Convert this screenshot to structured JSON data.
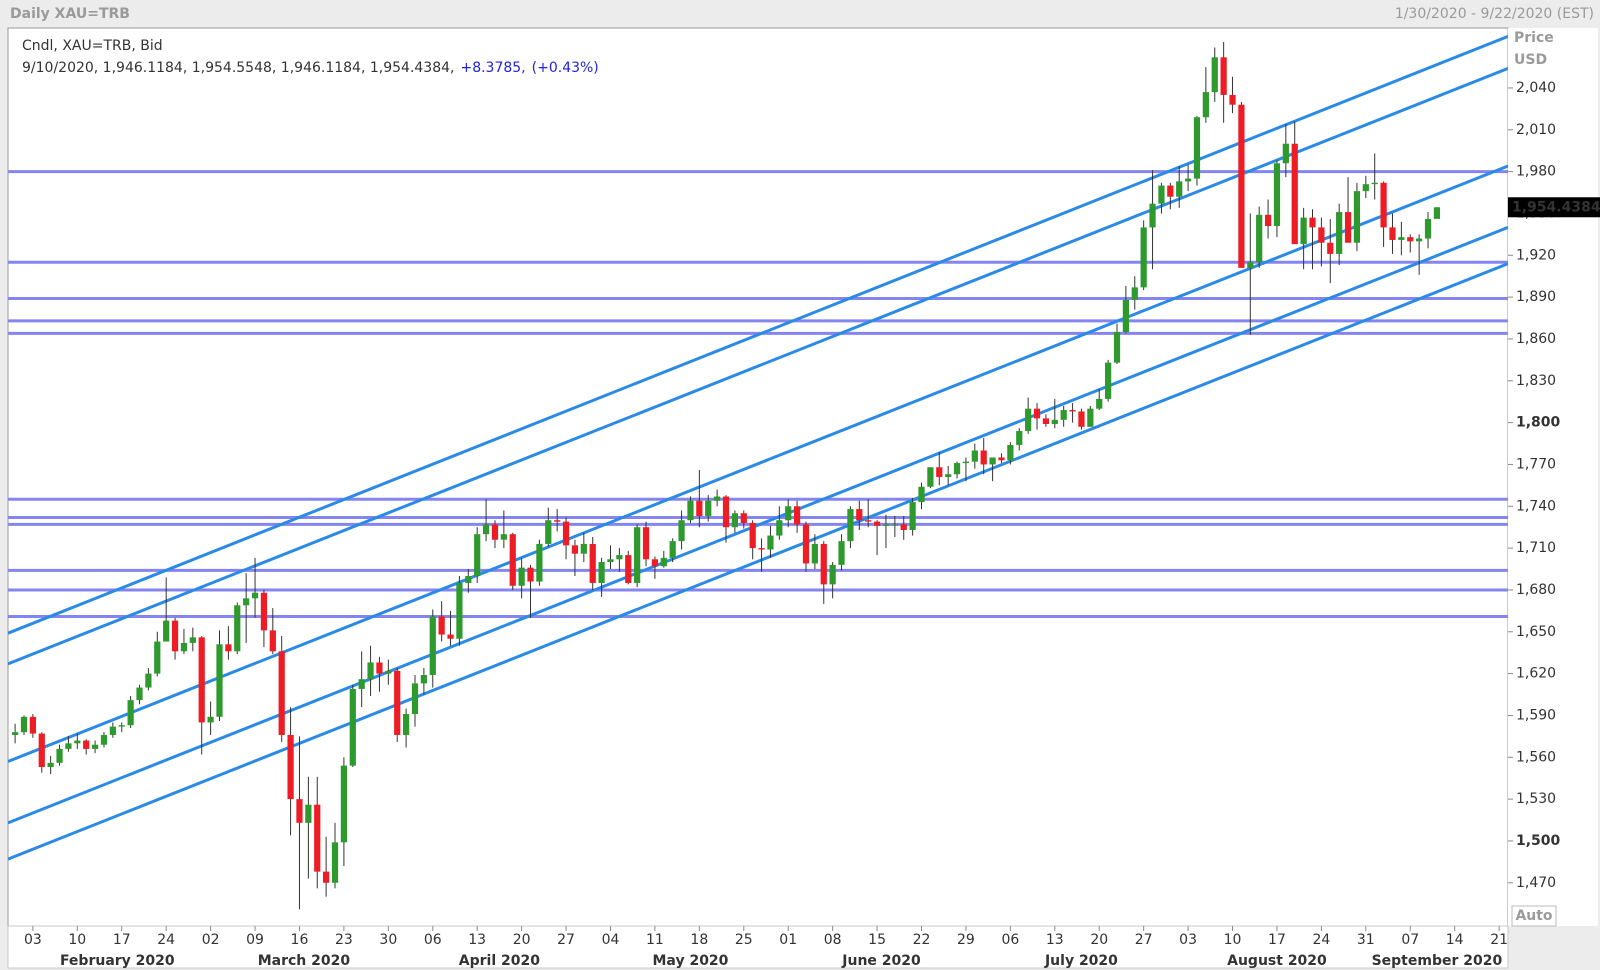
{
  "header": {
    "title": "Daily XAU=TRB",
    "range": "1/30/2020 - 9/22/2020 (EST)"
  },
  "chart_data": {
    "type": "candlestick",
    "legend_line1": "Cndl, XAU=TRB, Bid",
    "legend_line2": "9/10/2020, 1,946.1184, 1,954.5548, 1,946.1184, 1,954.4384,",
    "change": "+8.3785,",
    "change_pct": "(+0.43%)",
    "y_label_1": "Price",
    "y_label_2": "USD",
    "autoscale": "Auto",
    "last_price": {
      "value": 1954.4384,
      "label": "1,954.4384"
    },
    "up_color": "#2e9a2e",
    "down_color": "#ee1c24",
    "hline_color": "#8585f2",
    "channel_color": "#2b8ae6",
    "xlim": [
      -0.8,
      168
    ],
    "ylim": [
      1439,
      2083
    ],
    "yticks": [
      {
        "value": 1470,
        "label": "1,470"
      },
      {
        "value": 1500,
        "label": "1,500"
      },
      {
        "value": 1530,
        "label": "1,530"
      },
      {
        "value": 1560,
        "label": "1,560"
      },
      {
        "value": 1590,
        "label": "1,590"
      },
      {
        "value": 1620,
        "label": "1,620"
      },
      {
        "value": 1650,
        "label": "1,650"
      },
      {
        "value": 1680,
        "label": "1,680"
      },
      {
        "value": 1710,
        "label": "1,710"
      },
      {
        "value": 1740,
        "label": "1,740"
      },
      {
        "value": 1770,
        "label": "1,770"
      },
      {
        "value": 1800,
        "label": "1,800"
      },
      {
        "value": 1830,
        "label": "1,830"
      },
      {
        "value": 1860,
        "label": "1,860"
      },
      {
        "value": 1890,
        "label": "1,890"
      },
      {
        "value": 1920,
        "label": "1,920"
      },
      {
        "value": 1950,
        "label": "1,950"
      },
      {
        "value": 1980,
        "label": "1,980"
      },
      {
        "value": 2010,
        "label": "2,010"
      },
      {
        "value": 2040,
        "label": "2,040"
      }
    ],
    "xticks": [
      {
        "value": 2,
        "label": "03"
      },
      {
        "value": 7,
        "label": "10"
      },
      {
        "value": 12,
        "label": "17"
      },
      {
        "value": 17,
        "label": "24"
      },
      {
        "value": 22,
        "label": "02"
      },
      {
        "value": 27,
        "label": "09"
      },
      {
        "value": 32,
        "label": "16"
      },
      {
        "value": 37,
        "label": "23"
      },
      {
        "value": 42,
        "label": "30"
      },
      {
        "value": 47,
        "label": "06"
      },
      {
        "value": 52,
        "label": "13"
      },
      {
        "value": 57,
        "label": "20"
      },
      {
        "value": 62,
        "label": "27"
      },
      {
        "value": 67,
        "label": "04"
      },
      {
        "value": 72,
        "label": "11"
      },
      {
        "value": 77,
        "label": "18"
      },
      {
        "value": 82,
        "label": "25"
      },
      {
        "value": 87,
        "label": "01"
      },
      {
        "value": 92,
        "label": "08"
      },
      {
        "value": 97,
        "label": "15"
      },
      {
        "value": 102,
        "label": "22"
      },
      {
        "value": 107,
        "label": "29"
      },
      {
        "value": 112,
        "label": "06"
      },
      {
        "value": 117,
        "label": "13"
      },
      {
        "value": 122,
        "label": "20"
      },
      {
        "value": 127,
        "label": "27"
      },
      {
        "value": 132,
        "label": "03"
      },
      {
        "value": 137,
        "label": "10"
      },
      {
        "value": 142,
        "label": "17"
      },
      {
        "value": 147,
        "label": "24"
      },
      {
        "value": 152,
        "label": "31"
      },
      {
        "value": 157,
        "label": "07"
      },
      {
        "value": 162,
        "label": "14"
      },
      {
        "value": 167,
        "label": "21"
      }
    ],
    "months": [
      {
        "value": 11.5,
        "label": "February 2020"
      },
      {
        "value": 32.5,
        "label": "March 2020"
      },
      {
        "value": 54.5,
        "label": "April 2020"
      },
      {
        "value": 76,
        "label": "May 2020"
      },
      {
        "value": 97.5,
        "label": "June 2020"
      },
      {
        "value": 120,
        "label": "July 2020"
      },
      {
        "value": 142,
        "label": "August 2020"
      },
      {
        "value": 160,
        "label": "September 2020"
      }
    ],
    "hlines": [
      1980,
      1915,
      1889,
      1873,
      1864,
      1745,
      1732,
      1727,
      1694,
      1680,
      1661
    ],
    "channels": [
      {
        "x": [
          -0.8,
          168
        ],
        "y": [
          1649,
          2077
        ]
      },
      {
        "x": [
          -0.8,
          168
        ],
        "y": [
          1627,
          2054
        ]
      },
      {
        "x": [
          -0.8,
          168
        ],
        "y": [
          1557,
          1984
        ]
      },
      {
        "x": [
          -0.8,
          168
        ],
        "y": [
          1513,
          1940
        ]
      },
      {
        "x": [
          -0.8,
          168
        ],
        "y": [
          1487,
          1914
        ]
      }
    ],
    "ohlc": [
      [
        1576,
        1584,
        1570,
        1578
      ],
      [
        1578,
        1590,
        1576,
        1589
      ],
      [
        1589,
        1591,
        1574,
        1577
      ],
      [
        1577,
        1578,
        1549,
        1553
      ],
      [
        1553,
        1561,
        1548,
        1556
      ],
      [
        1556,
        1569,
        1554,
        1566
      ],
      [
        1566,
        1575,
        1564,
        1570
      ],
      [
        1570,
        1577,
        1566,
        1572
      ],
      [
        1572,
        1573,
        1562,
        1566
      ],
      [
        1566,
        1572,
        1563,
        1569
      ],
      [
        1569,
        1578,
        1567,
        1576
      ],
      [
        1576,
        1585,
        1574,
        1582
      ],
      [
        1582,
        1585,
        1578,
        1583
      ],
      [
        1583,
        1604,
        1581,
        1601
      ],
      [
        1601,
        1612,
        1598,
        1610
      ],
      [
        1610,
        1624,
        1608,
        1620
      ],
      [
        1620,
        1650,
        1618,
        1643
      ],
      [
        1643,
        1689,
        1643,
        1658
      ],
      [
        1658,
        1660,
        1630,
        1636
      ],
      [
        1636,
        1652,
        1634,
        1642
      ],
      [
        1642,
        1653,
        1636,
        1646
      ],
      [
        1646,
        1647,
        1562,
        1585
      ],
      [
        1585,
        1600,
        1576,
        1589
      ],
      [
        1589,
        1651,
        1586,
        1641
      ],
      [
        1641,
        1654,
        1630,
        1636
      ],
      [
        1636,
        1671,
        1634,
        1669
      ],
      [
        1669,
        1692,
        1642,
        1674
      ],
      [
        1674,
        1703,
        1660,
        1678
      ],
      [
        1678,
        1680,
        1639,
        1651
      ],
      [
        1651,
        1667,
        1634,
        1636
      ],
      [
        1636,
        1647,
        1571,
        1576
      ],
      [
        1576,
        1596,
        1504,
        1530
      ],
      [
        1530,
        1575,
        1451,
        1513
      ],
      [
        1513,
        1546,
        1473,
        1526
      ],
      [
        1526,
        1546,
        1466,
        1478
      ],
      [
        1478,
        1503,
        1460,
        1470
      ],
      [
        1470,
        1513,
        1466,
        1499
      ],
      [
        1499,
        1560,
        1482,
        1554
      ],
      [
        1554,
        1612,
        1553,
        1609
      ],
      [
        1609,
        1636,
        1596,
        1616
      ],
      [
        1616,
        1640,
        1604,
        1628
      ],
      [
        1628,
        1632,
        1607,
        1620
      ],
      [
        1620,
        1630,
        1612,
        1622
      ],
      [
        1622,
        1624,
        1571,
        1576
      ],
      [
        1576,
        1595,
        1567,
        1591
      ],
      [
        1591,
        1619,
        1582,
        1613
      ],
      [
        1613,
        1624,
        1605,
        1619
      ],
      [
        1619,
        1666,
        1610,
        1661
      ],
      [
        1661,
        1672,
        1643,
        1648
      ],
      [
        1648,
        1665,
        1640,
        1645
      ],
      [
        1645,
        1690,
        1640,
        1685
      ],
      [
        1685,
        1695,
        1678,
        1690
      ],
      [
        1690,
        1725,
        1685,
        1720
      ],
      [
        1720,
        1745,
        1715,
        1727
      ],
      [
        1727,
        1730,
        1710,
        1716
      ],
      [
        1716,
        1737,
        1710,
        1720
      ],
      [
        1720,
        1721,
        1680,
        1683
      ],
      [
        1683,
        1703,
        1674,
        1696
      ],
      [
        1696,
        1698,
        1660,
        1686
      ],
      [
        1686,
        1716,
        1683,
        1713
      ],
      [
        1713,
        1739,
        1711,
        1730
      ],
      [
        1730,
        1738,
        1722,
        1729
      ],
      [
        1729,
        1732,
        1702,
        1712
      ],
      [
        1712,
        1716,
        1690,
        1706
      ],
      [
        1706,
        1721,
        1700,
        1713
      ],
      [
        1713,
        1718,
        1680,
        1685
      ],
      [
        1685,
        1703,
        1675,
        1700
      ],
      [
        1700,
        1712,
        1695,
        1702
      ],
      [
        1702,
        1710,
        1693,
        1705
      ],
      [
        1705,
        1708,
        1684,
        1685
      ],
      [
        1685,
        1727,
        1682,
        1725
      ],
      [
        1725,
        1729,
        1697,
        1702
      ],
      [
        1702,
        1704,
        1688,
        1697
      ],
      [
        1697,
        1708,
        1696,
        1703
      ],
      [
        1703,
        1717,
        1700,
        1715
      ],
      [
        1715,
        1737,
        1709,
        1730
      ],
      [
        1730,
        1747,
        1728,
        1744
      ],
      [
        1744,
        1766,
        1725,
        1733
      ],
      [
        1733,
        1748,
        1729,
        1744
      ],
      [
        1744,
        1752,
        1740,
        1747
      ],
      [
        1747,
        1748,
        1714,
        1725
      ],
      [
        1725,
        1737,
        1721,
        1735
      ],
      [
        1735,
        1737,
        1724,
        1728
      ],
      [
        1728,
        1730,
        1702,
        1710
      ],
      [
        1710,
        1717,
        1693,
        1709
      ],
      [
        1709,
        1726,
        1703,
        1719
      ],
      [
        1719,
        1740,
        1716,
        1730
      ],
      [
        1730,
        1745,
        1725,
        1740
      ],
      [
        1740,
        1744,
        1721,
        1727
      ],
      [
        1727,
        1729,
        1693,
        1699
      ],
      [
        1699,
        1720,
        1695,
        1713
      ],
      [
        1713,
        1715,
        1670,
        1684
      ],
      [
        1684,
        1700,
        1674,
        1698
      ],
      [
        1698,
        1720,
        1694,
        1715
      ],
      [
        1715,
        1740,
        1710,
        1738
      ],
      [
        1738,
        1744,
        1723,
        1730
      ],
      [
        1730,
        1745,
        1725,
        1729
      ],
      [
        1729,
        1730,
        1705,
        1726
      ],
      [
        1726,
        1734,
        1710,
        1727
      ],
      [
        1727,
        1733,
        1718,
        1727
      ],
      [
        1727,
        1733,
        1716,
        1723
      ],
      [
        1723,
        1746,
        1719,
        1743
      ],
      [
        1743,
        1757,
        1738,
        1754
      ],
      [
        1754,
        1768,
        1753,
        1768
      ],
      [
        1768,
        1779,
        1755,
        1761
      ],
      [
        1761,
        1769,
        1755,
        1763
      ],
      [
        1763,
        1772,
        1760,
        1771
      ],
      [
        1771,
        1775,
        1758,
        1772
      ],
      [
        1772,
        1785,
        1767,
        1780
      ],
      [
        1780,
        1789,
        1763,
        1770
      ],
      [
        1770,
        1772,
        1758,
        1775
      ],
      [
        1775,
        1778,
        1771,
        1773
      ],
      [
        1773,
        1786,
        1770,
        1784
      ],
      [
        1784,
        1796,
        1780,
        1794
      ],
      [
        1794,
        1818,
        1792,
        1810
      ],
      [
        1810,
        1814,
        1795,
        1803
      ],
      [
        1803,
        1806,
        1797,
        1799
      ],
      [
        1799,
        1817,
        1796,
        1802
      ],
      [
        1802,
        1812,
        1797,
        1809
      ],
      [
        1809,
        1814,
        1800,
        1808
      ],
      [
        1808,
        1810,
        1795,
        1797
      ],
      [
        1797,
        1812,
        1797,
        1810
      ],
      [
        1810,
        1824,
        1809,
        1817
      ],
      [
        1817,
        1845,
        1815,
        1843
      ],
      [
        1843,
        1871,
        1842,
        1865
      ],
      [
        1865,
        1898,
        1864,
        1888
      ],
      [
        1888,
        1905,
        1881,
        1897
      ],
      [
        1897,
        1945,
        1895,
        1940
      ],
      [
        1940,
        1981,
        1910,
        1957
      ],
      [
        1957,
        1972,
        1950,
        1970
      ],
      [
        1970,
        1972,
        1953,
        1962
      ],
      [
        1962,
        1984,
        1954,
        1973
      ],
      [
        1973,
        1985,
        1966,
        1975
      ],
      [
        1975,
        2020,
        1970,
        2019
      ],
      [
        2019,
        2055,
        2015,
        2037
      ],
      [
        2037,
        2069,
        2030,
        2062
      ],
      [
        2062,
        2073,
        2015,
        2035
      ],
      [
        2035,
        2048,
        2022,
        2028
      ],
      [
        2028,
        2030,
        1911,
        1911
      ],
      [
        1911,
        1950,
        1863,
        1915
      ],
      [
        1915,
        1955,
        1911,
        1949
      ],
      [
        1949,
        1960,
        1932,
        1941
      ],
      [
        1941,
        1988,
        1933,
        1986
      ],
      [
        1986,
        2014,
        1976,
        2000
      ],
      [
        2000,
        2016,
        1930,
        1928
      ],
      [
        1928,
        1954,
        1910,
        1947
      ],
      [
        1947,
        1953,
        1910,
        1940
      ],
      [
        1940,
        1947,
        1912,
        1929
      ],
      [
        1929,
        1946,
        1900,
        1921
      ],
      [
        1921,
        1957,
        1913,
        1951
      ],
      [
        1951,
        1976,
        1930,
        1929
      ],
      [
        1929,
        1972,
        1923,
        1966
      ],
      [
        1966,
        1977,
        1961,
        1971
      ],
      [
        1971,
        1993,
        1960,
        1972
      ],
      [
        1972,
        1973,
        1926,
        1940
      ],
      [
        1940,
        1950,
        1921,
        1931
      ],
      [
        1931,
        1944,
        1920,
        1933
      ],
      [
        1933,
        1935,
        1922,
        1930
      ],
      [
        1930,
        1935,
        1906,
        1932
      ],
      [
        1932,
        1951,
        1925,
        1946
      ],
      [
        1946.1184,
        1954.5548,
        1946.1184,
        1954.4384
      ]
    ]
  }
}
